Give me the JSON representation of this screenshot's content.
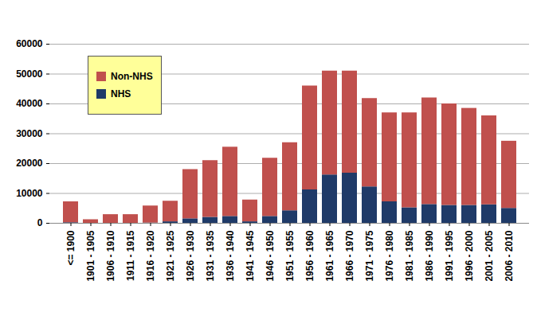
{
  "chart_data": {
    "type": "bar",
    "stacked": true,
    "grid": true,
    "legend": "top-left",
    "categories": [
      "<= 1900",
      "1901 - 1905",
      "1906 - 1910",
      "1911 - 1915",
      "1916 - 1920",
      "1921 - 1925",
      "1926 - 1930",
      "1931 - 1935",
      "1936 - 1940",
      "1941 - 1945",
      "1946 - 1950",
      "1951 - 1955",
      "1956 - 1960",
      "1961 - 1965",
      "1966 - 1970",
      "1971 - 1975",
      "1976 - 1980",
      "1981 - 1985",
      "1986 - 1990",
      "1991 - 1995",
      "1996 - 2000",
      "2001 - 2005",
      "2006 - 2010"
    ],
    "series": [
      {
        "name": "NHS",
        "color": "#1f3a68",
        "values": [
          200,
          0,
          0,
          0,
          100,
          500,
          1500,
          2000,
          2300,
          500,
          2300,
          4200,
          11200,
          16200,
          16800,
          12200,
          7200,
          5200,
          6300,
          6000,
          6000,
          6200,
          5000
        ]
      },
      {
        "name": "Non-NHS",
        "color": "#c0504d",
        "values": [
          7000,
          1200,
          2900,
          2900,
          5700,
          6900,
          16500,
          19000,
          23200,
          7300,
          19500,
          22800,
          34800,
          34800,
          34200,
          29600,
          29800,
          31800,
          35700,
          34000,
          32500,
          29800,
          22500
        ]
      }
    ],
    "ylim": [
      0,
      60000
    ],
    "yticks": [
      0,
      10000,
      20000,
      30000,
      40000,
      50000,
      60000
    ]
  }
}
